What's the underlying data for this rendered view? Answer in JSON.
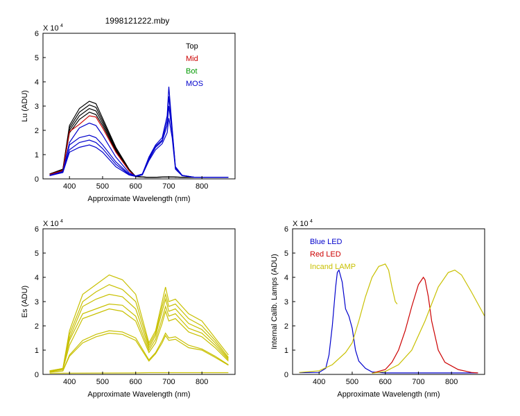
{
  "figure_title": "1998121222.mby",
  "chart_data": [
    {
      "id": "lu",
      "type": "line",
      "xlabel": "Approximate Wavelength (nm)",
      "ylabel": "Lu (ADU)",
      "exponent_label": "X 10",
      "exponent_power": "4",
      "xlim": [
        320,
        900
      ],
      "ylim": [
        0,
        60000
      ],
      "xticks": [
        400,
        500,
        600,
        700,
        800
      ],
      "yticks": [
        0,
        10000,
        20000,
        30000,
        40000,
        50000,
        60000
      ],
      "ytick_labels": [
        "0",
        "1",
        "2",
        "3",
        "4",
        "5",
        "6"
      ],
      "legend": [
        {
          "label": "Top",
          "color": "#000000"
        },
        {
          "label": "Mid",
          "color": "#cc0000"
        },
        {
          "label": "Bot",
          "color": "#009900"
        },
        {
          "label": "MOS",
          "color": "#0000cc"
        }
      ],
      "series": [
        {
          "color": "#000000",
          "x": [
            340,
            380,
            400,
            430,
            460,
            480,
            500,
            540,
            580,
            600,
            640,
            700,
            760,
            880
          ],
          "y": [
            2000,
            4000,
            22000,
            29000,
            32000,
            31000,
            25000,
            13000,
            4000,
            1000,
            600,
            800,
            600,
            600
          ]
        },
        {
          "color": "#000000",
          "x": [
            340,
            380,
            400,
            430,
            460,
            480,
            500,
            540,
            580,
            600,
            640,
            700,
            760,
            880
          ],
          "y": [
            2000,
            3800,
            21000,
            27500,
            30500,
            29500,
            24000,
            12500,
            3800,
            1000,
            600,
            800,
            600,
            600
          ]
        },
        {
          "color": "#000000",
          "x": [
            340,
            380,
            400,
            430,
            460,
            480,
            500,
            540,
            580,
            600,
            640,
            700,
            760,
            880
          ],
          "y": [
            1900,
            3600,
            20000,
            26000,
            29000,
            28000,
            23000,
            12000,
            3600,
            900,
            600,
            800,
            600,
            600
          ]
        },
        {
          "color": "#000000",
          "x": [
            340,
            380,
            400,
            430,
            460,
            480,
            500,
            540,
            580,
            600,
            640,
            700,
            760,
            880
          ],
          "y": [
            1800,
            3400,
            19000,
            24500,
            27500,
            26500,
            22000,
            11500,
            3400,
            900,
            600,
            800,
            600,
            600
          ]
        },
        {
          "color": "#cc0000",
          "x": [
            340,
            380,
            400,
            430,
            460,
            480,
            500,
            540,
            580,
            600
          ],
          "y": [
            1800,
            3500,
            19500,
            22500,
            26000,
            25500,
            21000,
            11000,
            3300,
            900
          ]
        },
        {
          "color": "#0000cc",
          "x": [
            340,
            380,
            400,
            430,
            460,
            480,
            500,
            540,
            580,
            600,
            620,
            640,
            660,
            680,
            695,
            700,
            710,
            720,
            740,
            780,
            880
          ],
          "y": [
            1500,
            3000,
            14000,
            17000,
            18000,
            17000,
            14000,
            7000,
            2000,
            1200,
            2000,
            9000,
            14000,
            17000,
            26000,
            38000,
            21000,
            5000,
            1500,
            600,
            600
          ]
        },
        {
          "color": "#0000cc",
          "x": [
            340,
            380,
            400,
            430,
            460,
            480,
            500,
            540,
            580,
            600,
            620,
            640,
            660,
            680,
            695,
            700,
            710,
            720,
            740,
            780,
            880
          ],
          "y": [
            1500,
            3000,
            15000,
            21000,
            23000,
            22000,
            18000,
            9000,
            2500,
            1200,
            2000,
            8500,
            13500,
            16000,
            24000,
            34000,
            20000,
            5000,
            1500,
            600,
            600
          ]
        },
        {
          "color": "#0000cc",
          "x": [
            340,
            380,
            400,
            430,
            460,
            480,
            500,
            540,
            580,
            600,
            620,
            640,
            660,
            680,
            695,
            700,
            710,
            720,
            740,
            780,
            880
          ],
          "y": [
            1400,
            2800,
            12000,
            15000,
            16000,
            15000,
            12500,
            6000,
            1800,
            1100,
            1800,
            8000,
            13000,
            15500,
            22000,
            30000,
            19000,
            4500,
            1400,
            600,
            600
          ]
        },
        {
          "color": "#0000cc",
          "x": [
            340,
            380,
            400,
            430,
            460,
            480,
            500,
            540,
            580,
            600,
            620,
            640,
            660,
            680,
            695,
            700,
            710,
            720,
            740,
            780,
            880
          ],
          "y": [
            1300,
            2600,
            11000,
            13000,
            14000,
            13000,
            11000,
            5000,
            1600,
            1000,
            1600,
            7500,
            12000,
            14500,
            19000,
            25000,
            17000,
            4000,
            1300,
            600,
            600
          ]
        }
      ]
    },
    {
      "id": "es",
      "type": "line",
      "xlabel": "Approximate Wavelength (nm)",
      "ylabel": "Es  (ADU)",
      "exponent_label": "X 10",
      "exponent_power": "4",
      "xlim": [
        320,
        900
      ],
      "ylim": [
        0,
        60000
      ],
      "xticks": [
        400,
        500,
        600,
        700,
        800
      ],
      "yticks": [
        0,
        10000,
        20000,
        30000,
        40000,
        50000,
        60000
      ],
      "ytick_labels": [
        "0",
        "1",
        "2",
        "3",
        "4",
        "5",
        "6"
      ],
      "series": [
        {
          "color": "#c8c000",
          "x": [
            340,
            380,
            400,
            440,
            480,
            520,
            560,
            600,
            640,
            660,
            680,
            690,
            700,
            720,
            760,
            800,
            840,
            880
          ],
          "y": [
            1500,
            2500,
            18000,
            33000,
            37000,
            41000,
            39000,
            33000,
            13000,
            18000,
            30000,
            36000,
            30000,
            31000,
            25000,
            22000,
            15000,
            8000
          ]
        },
        {
          "color": "#c8c000",
          "x": [
            340,
            380,
            400,
            440,
            480,
            520,
            560,
            600,
            640,
            660,
            680,
            690,
            700,
            720,
            760,
            800,
            840,
            880
          ],
          "y": [
            1500,
            2400,
            16500,
            30000,
            34000,
            37000,
            35000,
            30000,
            12000,
            17000,
            28000,
            33000,
            28000,
            29000,
            23000,
            20000,
            14000,
            7000
          ]
        },
        {
          "color": "#c8c000",
          "x": [
            340,
            380,
            400,
            440,
            480,
            520,
            560,
            600,
            640,
            660,
            680,
            690,
            700,
            720,
            760,
            800,
            840,
            880
          ],
          "y": [
            1400,
            2300,
            15000,
            28000,
            31000,
            33000,
            32000,
            27000,
            11000,
            16000,
            26000,
            31000,
            26000,
            27000,
            21000,
            18500,
            13000,
            6500
          ]
        },
        {
          "color": "#c8c000",
          "x": [
            340,
            380,
            400,
            440,
            480,
            520,
            560,
            600,
            640,
            660,
            680,
            690,
            700,
            720,
            760,
            800,
            840,
            880
          ],
          "y": [
            1300,
            2200,
            14000,
            25000,
            27000,
            29000,
            28500,
            24000,
            10000,
            14500,
            23000,
            28000,
            24000,
            25000,
            19000,
            17000,
            12000,
            6000
          ]
        },
        {
          "color": "#c8c000",
          "x": [
            340,
            380,
            400,
            440,
            480,
            520,
            560,
            600,
            640,
            660,
            680,
            690,
            700,
            720,
            760,
            800,
            840,
            880
          ],
          "y": [
            1200,
            2000,
            12000,
            23000,
            25000,
            27000,
            26000,
            22000,
            9000,
            13000,
            21000,
            26000,
            22000,
            23000,
            17500,
            15500,
            11000,
            5500
          ]
        },
        {
          "color": "#c8c000",
          "x": [
            340,
            380,
            400,
            440,
            480,
            520,
            560,
            600,
            640,
            660,
            680,
            690,
            700,
            720,
            760,
            800,
            840,
            880
          ],
          "y": [
            1000,
            1500,
            8000,
            14000,
            16500,
            18000,
            17500,
            15000,
            6000,
            9000,
            14000,
            17000,
            15000,
            15500,
            12000,
            10500,
            7500,
            4000
          ]
        },
        {
          "color": "#c8c000",
          "x": [
            340,
            380,
            400,
            440,
            480,
            520,
            560,
            600,
            640,
            660,
            680,
            690,
            700,
            720,
            760,
            800,
            840,
            880
          ],
          "y": [
            900,
            1400,
            7500,
            13000,
            15500,
            17000,
            16500,
            14000,
            5500,
            8500,
            13000,
            16000,
            14000,
            14500,
            11000,
            10000,
            7000,
            3800
          ]
        },
        {
          "color": "#c8c000",
          "x": [
            340,
            600,
            640,
            880
          ],
          "y": [
            500,
            600,
            700,
            700
          ]
        }
      ]
    },
    {
      "id": "lamps",
      "type": "line",
      "xlabel": "Approximate Wavelength (nm)",
      "ylabel": "Internal Calib. Lamps (ADU)",
      "exponent_label": "X 10",
      "exponent_power": "4",
      "xlim": [
        320,
        900
      ],
      "ylim": [
        0,
        60000
      ],
      "xticks": [
        400,
        500,
        600,
        700,
        800
      ],
      "yticks": [
        0,
        10000,
        20000,
        30000,
        40000,
        50000,
        60000
      ],
      "ytick_labels": [
        "0",
        "1",
        "2",
        "3",
        "4",
        "5",
        "6"
      ],
      "legend": [
        {
          "label": "Blue LED",
          "color": "#0000cc"
        },
        {
          "label": "Red LED",
          "color": "#cc0000"
        },
        {
          "label": "Incand LAMP",
          "color": "#c8c000"
        }
      ],
      "series": [
        {
          "name": "Blue LED",
          "color": "#0000cc",
          "x": [
            340,
            400,
            420,
            430,
            440,
            450,
            455,
            460,
            470,
            480,
            490,
            500,
            510,
            520,
            540,
            560,
            600,
            700,
            880
          ],
          "y": [
            700,
            800,
            2500,
            8000,
            20000,
            36000,
            42000,
            43000,
            38000,
            27000,
            24000,
            19000,
            10000,
            5500,
            2500,
            1000,
            600,
            600,
            600
          ]
        },
        {
          "name": "Red LED",
          "color": "#cc0000",
          "x": [
            560,
            600,
            620,
            640,
            660,
            680,
            700,
            715,
            720,
            730,
            740,
            760,
            780,
            820,
            860,
            880
          ],
          "y": [
            500,
            2000,
            5000,
            10000,
            18000,
            28000,
            37000,
            40000,
            39000,
            32000,
            22000,
            10000,
            5000,
            2000,
            800,
            600
          ]
        },
        {
          "name": "Incand LAMP",
          "color": "#c8c000",
          "x": [
            340,
            400,
            440,
            480,
            500,
            520,
            540,
            560,
            580,
            600,
            610,
            620,
            630,
            636
          ],
          "y": [
            800,
            1500,
            4000,
            9000,
            13000,
            22000,
            32000,
            40000,
            44500,
            45500,
            43000,
            36000,
            30000,
            29000
          ]
        },
        {
          "name": "Incand LAMP",
          "color": "#c8c000",
          "x": [
            560,
            600,
            640,
            680,
            720,
            760,
            790,
            810,
            830,
            860,
            900
          ],
          "y": [
            500,
            1200,
            4000,
            10000,
            22000,
            36000,
            42000,
            43000,
            41000,
            34000,
            24000
          ]
        }
      ]
    }
  ]
}
